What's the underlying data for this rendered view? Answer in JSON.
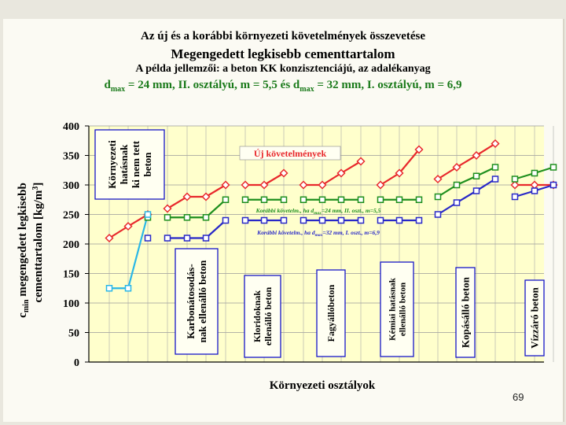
{
  "titles": {
    "line1": "Az új és a korábbi környezeti követelmények összevetése",
    "line2": "Megengedett legkisebb cementtartalom",
    "line3": "A példa jellemzői: a beton KK konzisztenciájú, az adalékanyag",
    "line4_a": "d",
    "line4_a_sub": "max",
    "line4_b": " = 24 mm, II. osztályú, m = 5,5 és d",
    "line4_b_sub": "max",
    "line4_c": " = 32 mm, I. osztályú, m = 6,9"
  },
  "page_number": "69",
  "colors": {
    "plot_bg": "#ffffcc",
    "new_req": "#e8282c",
    "old_24": "#1e8f1e",
    "old_32": "#2828c8",
    "cyan": "#2ab7e6",
    "group_box": "#1616c8"
  },
  "chart_data": {
    "type": "line",
    "ylabel": "c_min megengedett legkisebb cementtartalom [kg/m³]",
    "ylabel_line1": "c",
    "ylabel_line1_sub": "min",
    "ylabel_line1_rest": " megengedett legkisebb",
    "ylabel_line2": "cementtartalom [kg/m",
    "ylabel_line2_sup": "3",
    "ylabel_line2_end": "]",
    "xlabel": "Környezeti osztályok",
    "ylim": [
      0,
      400
    ],
    "yticks": [
      "0",
      "50",
      "100",
      "150",
      "200",
      "250",
      "300",
      "350",
      "400"
    ],
    "grid": true,
    "annotations": {
      "new": "Új követelmények",
      "old24_main": "Korábbi követelm., ha d",
      "old24_sub": "max",
      "old24_tail": "=24 mm, II. oszt., m=5,5",
      "old32_main": "Korábbi követelm., ha d",
      "old32_sub": "max",
      "old32_tail": "=32 mm, I. oszt., m=6,9"
    },
    "groups": [
      {
        "label_lines": [
          "Környezeti",
          "hatásnak",
          "ki nem tett",
          "beton"
        ]
      },
      {
        "label_lines": [
          "Karbonátosodás-",
          "nak ellenálló beton"
        ]
      },
      {
        "label_lines": [
          "Kloridoknak",
          "ellenálló beton"
        ]
      },
      {
        "label_lines": [
          "Fagyállóbeton"
        ]
      },
      {
        "label_lines": [
          "Kémiai hatásnak",
          "ellenálló beton"
        ]
      },
      {
        "label_lines": [
          "Kopásálló beton"
        ]
      },
      {
        "label_lines": [
          "Vízzáró beton"
        ]
      }
    ],
    "series": [
      {
        "key": "new_req",
        "segments": [
          [
            210,
            230,
            250
          ],
          [
            260,
            280,
            280,
            300
          ],
          [
            300,
            300,
            320
          ],
          [
            300,
            300,
            320,
            340
          ],
          [
            300,
            320,
            360
          ],
          [
            310,
            330,
            350,
            370
          ],
          [
            300,
            300,
            300
          ]
        ]
      },
      {
        "key": "old_24",
        "segments": [
          [
            null,
            null,
            245
          ],
          [
            245,
            245,
            245,
            275
          ],
          [
            275,
            275,
            275
          ],
          [
            275,
            275,
            275,
            275
          ],
          [
            275,
            275,
            275
          ],
          [
            280,
            300,
            315,
            330
          ],
          [
            310,
            320,
            330
          ]
        ]
      },
      {
        "key": "old_32",
        "segments": [
          [
            null,
            null,
            210
          ],
          [
            210,
            210,
            210,
            240
          ],
          [
            240,
            240,
            240
          ],
          [
            240,
            240,
            240,
            240
          ],
          [
            240,
            240,
            240
          ],
          [
            250,
            270,
            290,
            310
          ],
          [
            280,
            290,
            300
          ]
        ]
      },
      {
        "key": "cyan",
        "segments": [
          [
            125,
            125,
            250
          ],
          [],
          [],
          [],
          [],
          [],
          []
        ]
      }
    ]
  }
}
